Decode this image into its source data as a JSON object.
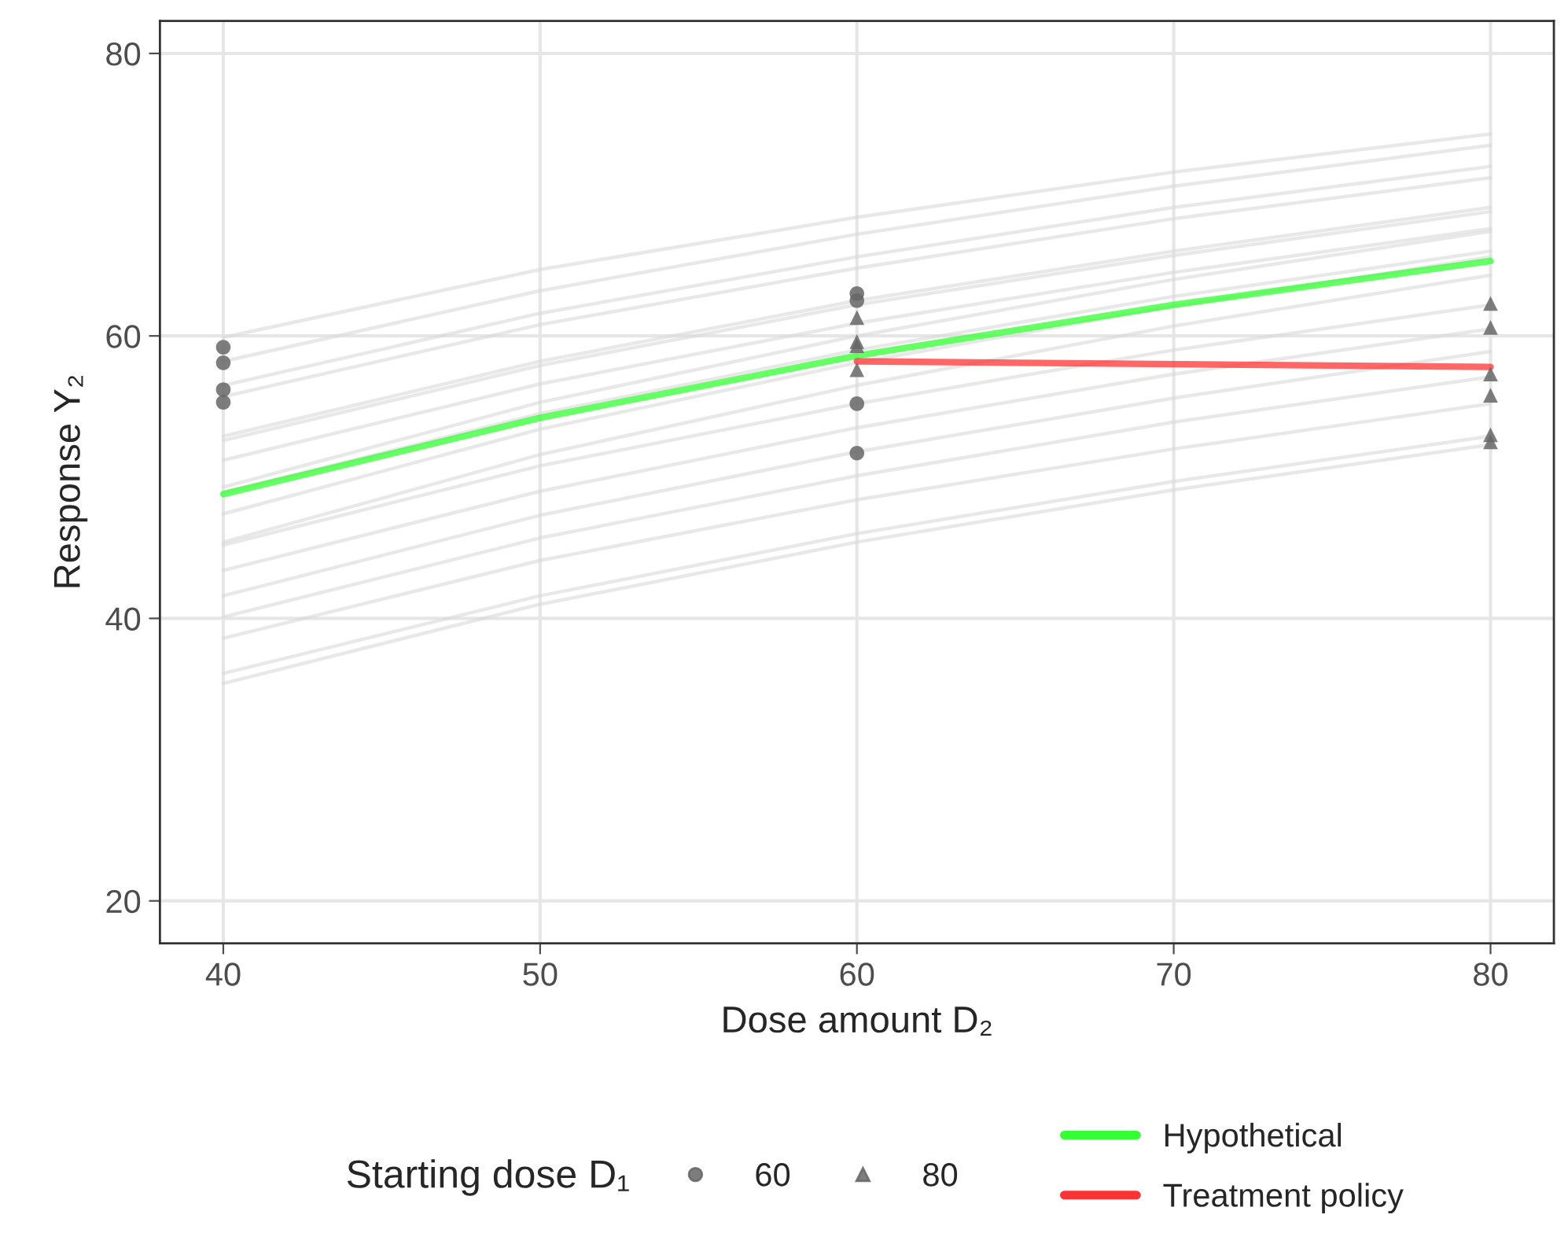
{
  "chart_data": {
    "type": "line",
    "xlabel": "Dose amount D₂",
    "ylabel": "Response Y₂",
    "legend_title": "Starting dose D₁",
    "legend": "bottom",
    "grid": true,
    "xlim": [
      38,
      82
    ],
    "ylim": [
      17,
      82.3
    ],
    "xticks": [
      40,
      50,
      60,
      70,
      80
    ],
    "yticks": [
      20,
      40,
      60,
      80
    ],
    "series": [
      {
        "color": "#d9d9d9",
        "x": [
          40,
          50,
          60,
          70,
          80
        ],
        "values": [
          59.9,
          64.7,
          68.4,
          71.6,
          74.3
        ]
      },
      {
        "color": "#d9d9d9",
        "x": [
          40,
          50,
          60,
          70,
          80
        ],
        "values": [
          58.2,
          63.2,
          67.2,
          70.6,
          73.5
        ]
      },
      {
        "color": "#d9d9d9",
        "x": [
          40,
          50,
          60,
          70,
          80
        ],
        "values": [
          56.5,
          61.6,
          65.6,
          69.1,
          72.0
        ]
      },
      {
        "color": "#d9d9d9",
        "x": [
          40,
          50,
          60,
          70,
          80
        ],
        "values": [
          55.7,
          60.8,
          64.8,
          68.3,
          71.2
        ]
      },
      {
        "color": "#d9d9d9",
        "x": [
          40,
          50,
          60,
          70,
          80
        ],
        "values": [
          52.9,
          58.2,
          62.5,
          66.0,
          69.1
        ]
      },
      {
        "color": "#d9d9d9",
        "x": [
          40,
          50,
          60,
          70,
          80
        ],
        "values": [
          52.6,
          57.9,
          62.2,
          65.7,
          68.8
        ]
      },
      {
        "color": "#d9d9d9",
        "x": [
          40,
          50,
          60,
          70,
          80
        ],
        "values": [
          51.2,
          56.6,
          60.9,
          64.5,
          67.6
        ]
      },
      {
        "color": "#d9d9d9",
        "x": [
          40,
          50,
          60,
          70,
          80
        ],
        "values": [
          49.3,
          55.3,
          60.0,
          64.0,
          67.4
        ]
      },
      {
        "color": "#d9d9d9",
        "x": [
          40,
          50,
          60,
          70,
          80
        ],
        "values": [
          48.9,
          54.5,
          59.0,
          62.8,
          66.0
        ]
      },
      {
        "color": "#d9d9d9",
        "x": [
          40,
          50,
          60,
          70,
          80
        ],
        "values": [
          47.4,
          53.4,
          58.1,
          62.1,
          65.6
        ]
      },
      {
        "color": "#d9d9d9",
        "x": [
          40,
          50,
          60,
          70,
          80
        ],
        "values": [
          45.4,
          51.6,
          56.5,
          60.7,
          64.3
        ]
      },
      {
        "color": "#d9d9d9",
        "x": [
          40,
          50,
          60,
          70,
          80
        ],
        "values": [
          45.2,
          50.8,
          55.2,
          59.0,
          62.2
        ]
      },
      {
        "color": "#d9d9d9",
        "x": [
          40,
          50,
          60,
          70,
          80
        ],
        "values": [
          43.4,
          49.0,
          53.5,
          57.3,
          60.5
        ]
      },
      {
        "color": "#d9d9d9",
        "x": [
          40,
          50,
          60,
          70,
          80
        ],
        "values": [
          41.6,
          47.3,
          51.8,
          55.6,
          58.9
        ]
      },
      {
        "color": "#d9d9d9",
        "x": [
          40,
          50,
          60,
          70,
          80
        ],
        "values": [
          40.1,
          45.7,
          50.1,
          53.9,
          57.1
        ]
      },
      {
        "color": "#d9d9d9",
        "x": [
          40,
          50,
          60,
          70,
          80
        ],
        "values": [
          38.6,
          44.1,
          48.4,
          52.0,
          55.2
        ]
      },
      {
        "color": "#d9d9d9",
        "x": [
          40,
          50,
          60,
          70,
          80
        ],
        "values": [
          36.1,
          41.6,
          46.0,
          49.7,
          52.9
        ]
      },
      {
        "color": "#d9d9d9",
        "x": [
          40,
          50,
          60,
          70,
          80
        ],
        "values": [
          35.4,
          41.0,
          45.4,
          49.1,
          52.3
        ]
      },
      {
        "type": "scatter",
        "name": "60",
        "marker": "circle",
        "color": "#666666",
        "x": [
          40,
          40,
          40,
          40,
          60,
          60,
          60,
          60
        ],
        "values": [
          59.2,
          58.1,
          56.2,
          55.3,
          63.0,
          62.5,
          55.2,
          51.7
        ]
      },
      {
        "type": "scatter",
        "name": "80",
        "marker": "triangle",
        "color": "#666666",
        "x": [
          60,
          60,
          60,
          60,
          80,
          80,
          80,
          80,
          80,
          80
        ],
        "values": [
          61.3,
          59.6,
          59.3,
          57.6,
          62.3,
          60.6,
          57.3,
          55.8,
          53.0,
          52.5
        ]
      },
      {
        "name": "Hypothetical",
        "color": "#33ff33",
        "x": [
          40,
          50,
          60,
          70,
          80
        ],
        "values": [
          48.8,
          54.2,
          58.6,
          62.2,
          65.3
        ]
      },
      {
        "name": "Treatment policy",
        "color": "#ff3333",
        "x": [
          60,
          80
        ],
        "values": [
          58.2,
          57.8
        ]
      }
    ]
  }
}
